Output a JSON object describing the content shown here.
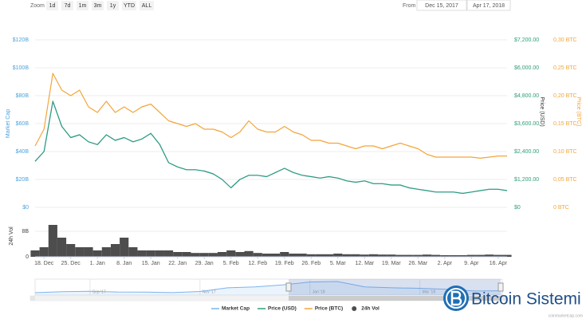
{
  "toolbar": {
    "zoom_label": "Zoom",
    "zoom_buttons": [
      "1d",
      "7d",
      "1m",
      "3m",
      "1y",
      "YTD",
      "ALL"
    ],
    "from_label": "From",
    "from": "Dec 15, 2017",
    "to_label": "To",
    "to": "Apr 17, 2018"
  },
  "chart_data": [
    {
      "type": "line",
      "x": [
        null,
        "18. Dec",
        null,
        null,
        "25. Dec",
        null,
        null,
        "1. Jan",
        null,
        null,
        "8. Jan",
        null,
        null,
        "15. Jan",
        null,
        null,
        "22. Jan",
        null,
        null,
        "29. Jan",
        null,
        null,
        "5. Feb",
        null,
        null,
        "12. Feb",
        null,
        null,
        "19. Feb",
        null,
        null,
        "26. Feb",
        null,
        null,
        "5. Mar",
        null,
        null,
        "12. Mar",
        null,
        null,
        "19. Mar",
        null,
        null,
        "26. Mar",
        null,
        null,
        "2. Apr",
        null,
        null,
        "9. Apr",
        null,
        null,
        "16. Apr",
        null
      ],
      "series": [
        {
          "name": "Market Cap",
          "color": "#7cb5ec",
          "values": [
            33,
            40,
            76,
            58,
            50,
            52,
            47,
            45,
            52,
            48,
            50,
            47,
            49,
            53,
            45,
            32,
            29,
            27,
            27,
            26,
            24,
            20,
            14,
            20,
            23,
            23,
            22,
            25,
            28,
            25,
            23,
            22,
            21,
            22,
            21,
            19,
            18,
            19,
            17,
            17,
            16,
            16,
            14,
            13,
            12,
            11,
            11,
            11,
            10,
            11,
            12,
            13,
            13,
            12
          ]
        },
        {
          "name": "Price (USD)",
          "color": "#2f9e7c",
          "axis": "y2",
          "values": [
            1980,
            2400,
            4560,
            3480,
            3000,
            3120,
            2820,
            2700,
            3120,
            2880,
            3000,
            2820,
            2940,
            3180,
            2700,
            1920,
            1740,
            1620,
            1620,
            1560,
            1440,
            1200,
            840,
            1200,
            1380,
            1380,
            1320,
            1500,
            1680,
            1500,
            1380,
            1320,
            1260,
            1320,
            1260,
            1140,
            1080,
            1140,
            1020,
            1020,
            960,
            960,
            840,
            780,
            720,
            660,
            660,
            660,
            600,
            660,
            720,
            780,
            780,
            720
          ]
        },
        {
          "name": "Price (BTC)",
          "color": "#f3a53a",
          "axis": "y3",
          "values": [
            0.11,
            0.14,
            0.24,
            0.21,
            0.2,
            0.21,
            0.18,
            0.17,
            0.19,
            0.17,
            0.18,
            0.17,
            0.18,
            0.185,
            0.17,
            0.155,
            0.15,
            0.145,
            0.15,
            0.14,
            0.14,
            0.135,
            0.125,
            0.135,
            0.155,
            0.14,
            0.135,
            0.135,
            0.145,
            0.135,
            0.13,
            0.12,
            0.12,
            0.115,
            0.115,
            0.11,
            0.105,
            0.11,
            0.11,
            0.105,
            0.11,
            0.115,
            0.11,
            0.105,
            0.095,
            0.09,
            0.09,
            0.09,
            0.09,
            0.09,
            0.088,
            0.09,
            0.092,
            0.092
          ]
        }
      ],
      "y_label": "Market Cap",
      "y2_label": "Price (USD)",
      "y3_label": "Price (BTC)",
      "ylim": [
        0,
        120
      ],
      "yticks": [
        {
          "value": 0,
          "label": "$0"
        },
        {
          "value": 20,
          "label": "$20B"
        },
        {
          "value": 40,
          "label": "$40B"
        },
        {
          "value": 60,
          "label": "$60B"
        },
        {
          "value": 80,
          "label": "$80B"
        },
        {
          "value": 100,
          "label": "$100B"
        },
        {
          "value": 120,
          "label": "$120B"
        }
      ],
      "y2lim": [
        0,
        7200
      ],
      "y2ticks": [
        {
          "value": 0,
          "label": "$0"
        },
        {
          "value": 1200,
          "label": "$1,200.00"
        },
        {
          "value": 2400,
          "label": "$2,400.00"
        },
        {
          "value": 3600,
          "label": "$3,600.00"
        },
        {
          "value": 4800,
          "label": "$4,800.00"
        },
        {
          "value": 6000,
          "label": "$6,000.00"
        },
        {
          "value": 7200,
          "label": "$7,200.00"
        }
      ],
      "y3lim": [
        0,
        0.3
      ],
      "y3ticks": [
        {
          "value": 0,
          "label": "0 BTC"
        },
        {
          "value": 0.05,
          "label": "0,05 BTC"
        },
        {
          "value": 0.1,
          "label": "0,10 BTC"
        },
        {
          "value": 0.15,
          "label": "0,15 BTC"
        },
        {
          "value": 0.2,
          "label": "0,20 BTC"
        },
        {
          "value": 0.25,
          "label": "0,25 BTC"
        },
        {
          "value": 0.3,
          "label": "0,30 BTC"
        }
      ],
      "grid": true
    },
    {
      "type": "bar",
      "y_label": "24h Vol",
      "series": [
        {
          "name": "24h Vol",
          "color": "#4d4d4d",
          "values": [
            2,
            3,
            10,
            6,
            4,
            3,
            3,
            2,
            3,
            4,
            6,
            3,
            2,
            2,
            2,
            2,
            1.5,
            1.5,
            1.2,
            1.2,
            1.2,
            1.5,
            2,
            1.5,
            1.8,
            1.2,
            1,
            1,
            1.5,
            1,
            1,
            0.8,
            0.8,
            0.8,
            1,
            0.8,
            0.8,
            0.7,
            0.8,
            0.7,
            0.7,
            0.6,
            0.6,
            0.6,
            0.7,
            0.6,
            0.5,
            0.5,
            0.5,
            0.6,
            0.6,
            0.7,
            0.6,
            0.6
          ]
        }
      ],
      "ylim": [
        0,
        13
      ],
      "yticks": [
        0,
        {
          "value": 8,
          "label": "8B"
        }
      ]
    },
    {
      "type": "area",
      "color": "#7cb5ec",
      "x": [
        null,
        null,
        "Sep '17",
        null,
        null,
        null,
        "Nov '17",
        null,
        null,
        null,
        "Jan '18",
        null,
        null,
        null,
        "Mar '18",
        null,
        null,
        null
      ],
      "values": [
        300,
        500,
        600,
        450,
        430,
        320,
        550,
        1300,
        1500,
        1900,
        2500,
        2600,
        1500,
        1300,
        1200,
        1000,
        650,
        700
      ]
    }
  ],
  "brand": "Bitcoin Sistemi",
  "credit": "coinmarketcap.com"
}
